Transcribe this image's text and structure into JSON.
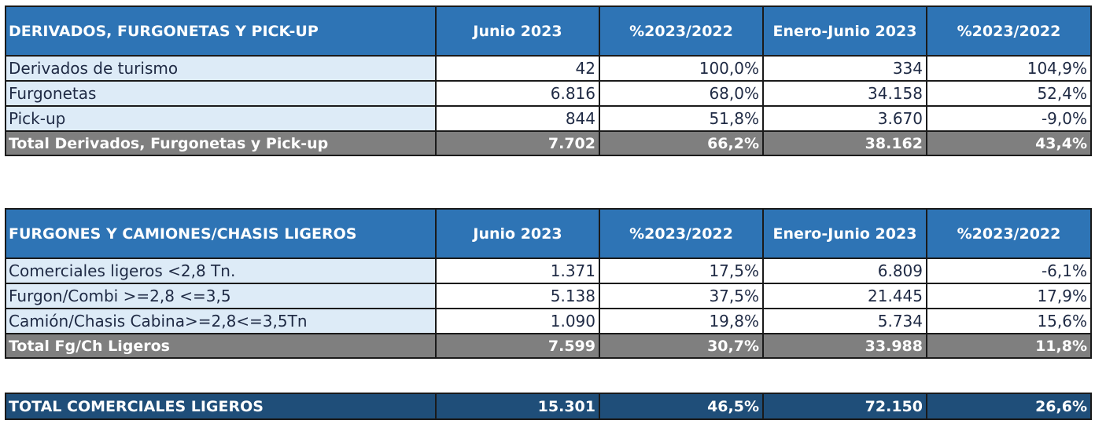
{
  "tables": [
    {
      "header": [
        "DERIVADOS, FURGONETAS Y PICK-UP",
        "Junio 2023",
        "%2023/2022",
        "Enero-Junio 2023",
        "%2023/2022"
      ],
      "rows": [
        [
          "Derivados de turismo",
          "42",
          "100,0%",
          "334",
          "104,9%"
        ],
        [
          "Furgonetas",
          "6.816",
          "68,0%",
          "34.158",
          "52,4%"
        ],
        [
          "Pick-up",
          "844",
          "51,8%",
          "3.670",
          "-9,0%"
        ]
      ],
      "total": [
        "Total Derivados, Furgonetas y Pick-up",
        "7.702",
        "66,2%",
        "38.162",
        "43,4%"
      ]
    },
    {
      "header": [
        "FURGONES Y CAMIONES/CHASIS LIGEROS",
        "Junio 2023",
        "%2023/2022",
        "Enero-Junio 2023",
        "%2023/2022"
      ],
      "rows": [
        [
          "Comerciales ligeros <2,8 Tn.",
          "1.371",
          "17,5%",
          "6.809",
          "-6,1%"
        ],
        [
          "Furgon/Combi >=2,8 <=3,5",
          "5.138",
          "37,5%",
          "21.445",
          "17,9%"
        ],
        [
          "Camión/Chasis Cabina>=2,8<=3,5Tn",
          "1.090",
          "19,8%",
          "5.734",
          "15,6%"
        ]
      ],
      "total": [
        "Total Fg/Ch Ligeros",
        "7.599",
        "30,7%",
        "33.988",
        "11,8%"
      ]
    }
  ],
  "grand_total": [
    "TOTAL COMERCIALES LIGEROS",
    "15.301",
    "46,5%",
    "72.150",
    "26,6%"
  ],
  "colors": {
    "header_blue": "#2e74b5",
    "label_light_blue": "#ddebf7",
    "total_gray": "#7f7f7f",
    "grand_total_navy": "#1f4e79"
  }
}
